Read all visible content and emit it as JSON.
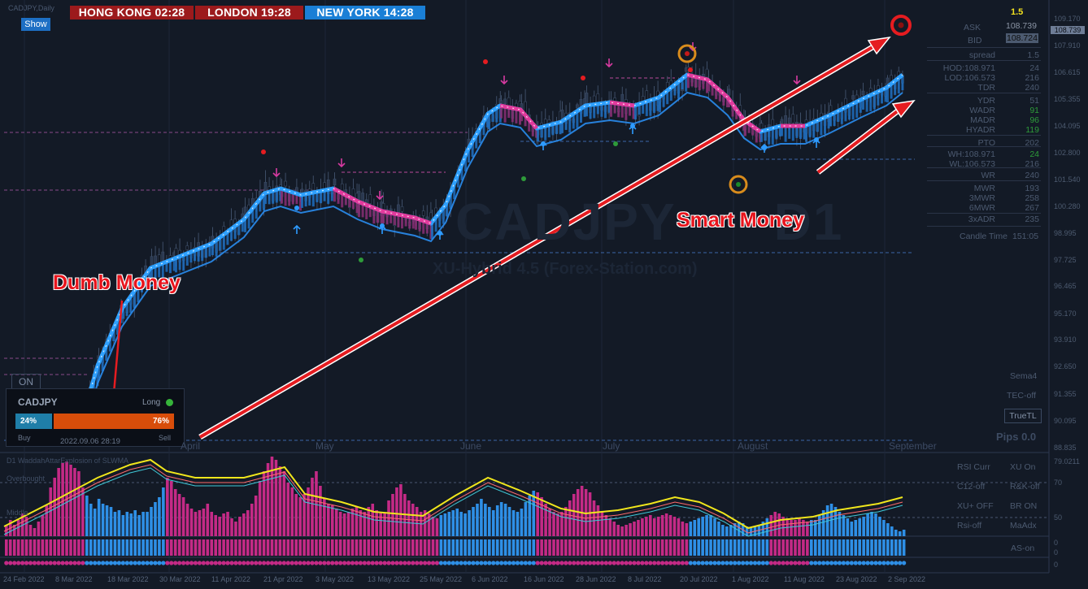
{
  "chart": {
    "symbol_tf": "CADJPY,Daily",
    "watermark_symbol": "CADJPY",
    "watermark_tf": "D1",
    "watermark_sub": "XU-Hybrid 4.5 (Forex-Station.com)",
    "show_button": "Show",
    "on_button": "ON"
  },
  "sessions": [
    {
      "label": "HONG KONG 02:28",
      "color": "#9c1a1c"
    },
    {
      "label": "LONDON   19:28",
      "color": "#9c1a1c"
    },
    {
      "label": "NEW YORK  14:28",
      "color": "#1a7fd6"
    }
  ],
  "annotations": {
    "dumb": "Dumb Money",
    "smart": "Smart Money"
  },
  "trade_panel": {
    "symbol": "CADJPY",
    "direction": "Long",
    "buy_pct": "24%",
    "sell_pct": "76%",
    "buy_label": "Buy",
    "sell_label": "Sell",
    "timestamp": "2022.09.06 28:19",
    "buy_fraction": 0.24
  },
  "info_panel": {
    "top_value": "1.5",
    "ask_label": "ASK",
    "ask": "108.739",
    "bid_label": "BID",
    "bid": "108.724",
    "rows": [
      {
        "label": "spread",
        "value": "1.5",
        "color": "#4c5a70"
      },
      {
        "label": "HOD:108.971",
        "value": "24",
        "color": "#4c5a70"
      },
      {
        "label": "LOD:106.573",
        "value": "216",
        "color": "#4c5a70"
      },
      {
        "label": "TDR",
        "value": "240",
        "color": "#4c5a70"
      },
      {
        "label": "YDR",
        "value": "51",
        "color": "#4c5a70"
      },
      {
        "label": "WADR",
        "value": "91",
        "color": "#2e9b3a"
      },
      {
        "label": "MADR",
        "value": "96",
        "color": "#2e9b3a"
      },
      {
        "label": "HYADR",
        "value": "119",
        "color": "#2e9b3a"
      },
      {
        "label": "PTO",
        "value": "202",
        "color": "#4c5a70"
      },
      {
        "label": "WH:108.971",
        "value": "24",
        "color": "#2e9b3a"
      },
      {
        "label": "WL:106.573",
        "value": "216",
        "color": "#4c5a70"
      },
      {
        "label": "WR",
        "value": "240",
        "color": "#4c5a70"
      },
      {
        "label": "MWR",
        "value": "193",
        "color": "#4c5a70"
      },
      {
        "label": "3MWR",
        "value": "258",
        "color": "#4c5a70"
      },
      {
        "label": "6MWR",
        "value": "267",
        "color": "#4c5a70"
      },
      {
        "label": "3xADR",
        "value": "235",
        "color": "#4c5a70"
      }
    ],
    "candle_time_label": "Candle Time",
    "candle_time": "151:05",
    "sema": "Sema4",
    "tec": "TEC-off",
    "truetl": "TrueTL",
    "pips": "Pips 0.0"
  },
  "price_axis": [
    "109.170",
    "108.739",
    "107.910",
    "106.615",
    "105.355",
    "104.095",
    "102.800",
    "101.540",
    "100.280",
    "98.995",
    "97.725",
    "96.465",
    "95.170",
    "93.910",
    "92.650",
    "91.355",
    "90.095",
    "88.835"
  ],
  "months": [
    "April",
    "May",
    "June",
    "July",
    "August",
    "September"
  ],
  "dates": [
    "24 Feb 2022",
    "8 Mar 2022",
    "18 Mar 2022",
    "30 Mar 2022",
    "11 Apr 2022",
    "21 Apr 2022",
    "3 May 2022",
    "13 May 2022",
    "25 May 2022",
    "6 Jun 2022",
    "16 Jun 2022",
    "28 Jun 2022",
    "8 Jul 2022",
    "20 Jul 2022",
    "1 Aug 2022",
    "11 Aug 2022",
    "23 Aug 2022",
    "2 Sep 2022"
  ],
  "indicator": {
    "title": "D1 WaddahAttarExplosion of SLWMA",
    "overbought": "Overbought",
    "middle": "Middle",
    "axis": [
      "79.0211",
      "70",
      "50",
      "0",
      "0",
      "0"
    ],
    "buttons": [
      [
        "RSI Curr",
        "XU On"
      ],
      [
        "C12-off",
        "R&K-off"
      ],
      [
        "XU+ OFF",
        "BR ON"
      ],
      [
        "Rsi-off",
        "MaAdx"
      ]
    ],
    "as_on": "AS-on"
  },
  "colors": {
    "up": "#2e8fe6",
    "down": "#c42a86",
    "bg": "#131a26"
  }
}
